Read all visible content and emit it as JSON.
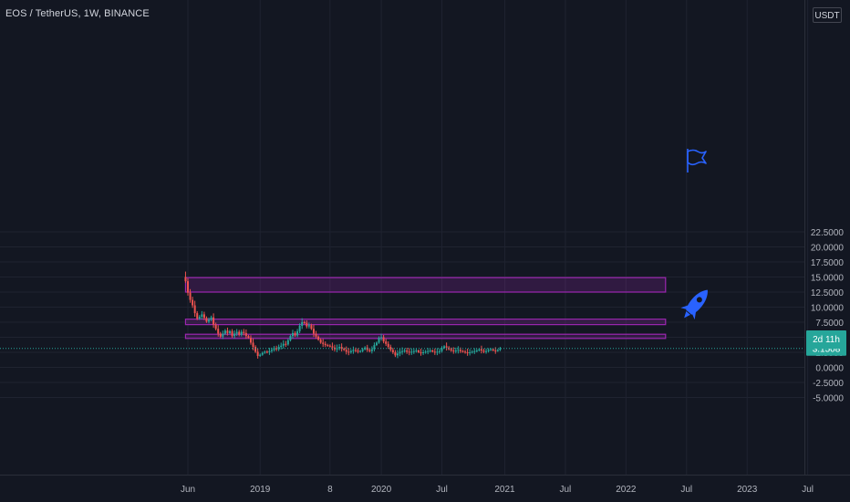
{
  "header": {
    "symbol_title": "EOS / TetherUS, 1W, BINANCE",
    "currency_label": "USDT"
  },
  "price_badge": {
    "price": "3.1508",
    "countdown": "2d 11h",
    "color": "#26a69a"
  },
  "colors": {
    "up": "#26a69a",
    "down": "#ef5350",
    "zone_fill": "#9c27b0",
    "zone_stroke": "#9c27b0",
    "icon": "#2962ff"
  },
  "icons": [
    "flag-icon",
    "rocket-icon"
  ],
  "chart_data": {
    "type": "candlestick",
    "title": "EOS / TetherUS, 1W, BINANCE",
    "ylim": [
      -7.4,
      23.2
    ],
    "y_ticks": [
      "22.5000",
      "20.0000",
      "17.5000",
      "15.0000",
      "12.5000",
      "10.0000",
      "7.5000",
      "5.0000",
      "2.5000",
      "0.0000",
      "-2.5000",
      "-5.0000"
    ],
    "y_tick_values": [
      22.5,
      20,
      17.5,
      15,
      12.5,
      10,
      7.5,
      5,
      2.5,
      0,
      -2.5,
      -5
    ],
    "x_ticks": [
      "Jun",
      "2019",
      "8",
      "2020",
      "Jul",
      "2021",
      "Jul",
      "2022",
      "Jul",
      "2023",
      "Jul"
    ],
    "x_tick_weeks": [
      0,
      31,
      61,
      83,
      109,
      136,
      162,
      188,
      214,
      240,
      266
    ],
    "grid": true,
    "current_price": 3.1508,
    "zones": [
      {
        "low": 12.5,
        "high": 14.9,
        "start_week": -1,
        "end_week": 205
      },
      {
        "low": 7.1,
        "high": 8.0,
        "start_week": -1,
        "end_week": 205
      },
      {
        "low": 4.8,
        "high": 5.5,
        "start_week": -1,
        "end_week": 205
      }
    ],
    "candles_start_week": -1,
    "close": [
      14.3,
      12.4,
      11.2,
      10.3,
      9.0,
      8.1,
      8.4,
      8.8,
      8.2,
      7.6,
      7.9,
      8.3,
      7.1,
      6.4,
      5.6,
      5.1,
      5.6,
      6.1,
      5.7,
      6.0,
      5.2,
      5.6,
      5.9,
      5.4,
      5.9,
      5.7,
      5.2,
      4.9,
      4.1,
      3.4,
      2.6,
      1.9,
      2.1,
      2.4,
      2.6,
      2.5,
      2.7,
      2.9,
      3.2,
      3.0,
      3.4,
      3.6,
      3.9,
      3.8,
      4.5,
      5.2,
      5.7,
      5.3,
      6.0,
      6.9,
      7.5,
      7.4,
      6.8,
      7.0,
      6.4,
      5.6,
      5.1,
      4.6,
      4.1,
      3.9,
      3.7,
      3.6,
      3.5,
      3.3,
      3.0,
      3.2,
      3.4,
      3.1,
      2.9,
      2.6,
      2.5,
      2.7,
      2.9,
      2.8,
      2.6,
      2.7,
      3.0,
      3.3,
      2.9,
      2.7,
      3.0,
      3.7,
      4.1,
      4.9,
      5.0,
      4.3,
      3.9,
      3.4,
      2.9,
      2.5,
      2.0,
      2.3,
      2.6,
      2.7,
      2.8,
      2.6,
      2.5,
      2.6,
      2.7,
      2.8,
      2.5,
      2.4,
      2.5,
      2.6,
      2.7,
      2.8,
      2.6,
      2.5,
      2.6,
      2.7,
      3.2,
      3.5,
      3.3,
      3.0,
      2.8,
      2.7,
      2.8,
      2.9,
      2.7,
      2.6,
      2.5,
      2.4,
      2.5,
      2.6,
      2.7,
      2.8,
      3.0,
      2.8,
      2.6,
      2.7,
      2.9,
      3.0,
      2.8,
      2.7,
      2.9,
      3.15
    ]
  }
}
